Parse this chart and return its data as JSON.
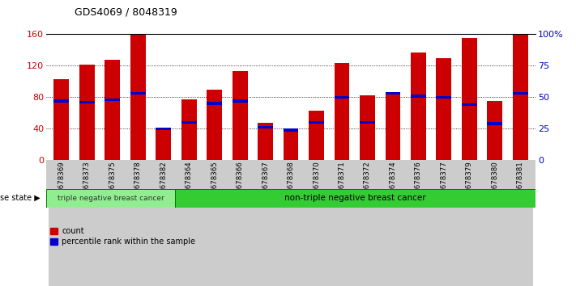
{
  "title": "GDS4069 / 8048319",
  "samples": [
    "GSM678369",
    "GSM678373",
    "GSM678375",
    "GSM678378",
    "GSM678382",
    "GSM678364",
    "GSM678365",
    "GSM678366",
    "GSM678367",
    "GSM678368",
    "GSM678370",
    "GSM678371",
    "GSM678372",
    "GSM678374",
    "GSM678376",
    "GSM678377",
    "GSM678379",
    "GSM678380",
    "GSM678381"
  ],
  "counts": [
    103,
    121,
    128,
    160,
    41,
    77,
    90,
    113,
    47,
    38,
    63,
    123,
    82,
    85,
    137,
    130,
    155,
    75,
    160
  ],
  "percentiles": [
    47,
    46,
    48,
    53,
    25,
    30,
    45,
    47,
    26,
    24,
    30,
    50,
    30,
    53,
    51,
    50,
    44,
    29,
    53
  ],
  "triple_neg_count": 5,
  "ylim_left": [
    0,
    160
  ],
  "yticks_left": [
    0,
    40,
    80,
    120,
    160
  ],
  "yticks_right": [
    0,
    25,
    50,
    75,
    100
  ],
  "bar_color": "#CC0000",
  "blue_color": "#0000CC",
  "triple_neg_bg": "#90EE90",
  "non_triple_neg_bg": "#33CC33",
  "left_ycolor": "#CC0000",
  "right_ycolor": "#0000CC",
  "tick_bg_color": "#CCCCCC"
}
